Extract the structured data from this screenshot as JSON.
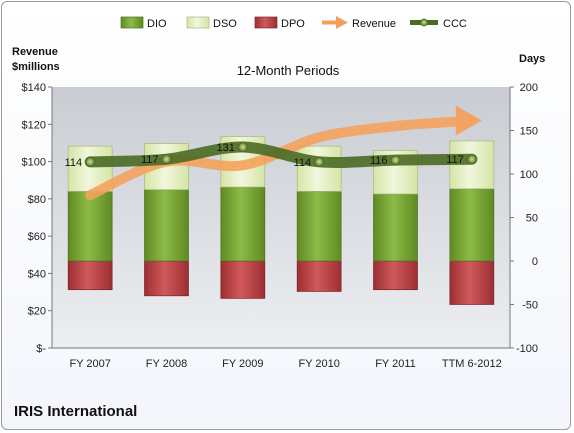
{
  "company": "IRIS International",
  "chart_data": {
    "type": "bar",
    "title": "12-Month Periods",
    "categories": [
      "FY 2007",
      "FY 2008",
      "FY 2009",
      "FY 2010",
      "FY 2011",
      "TTM 6-2012"
    ],
    "left_axis": {
      "label_line1": "Revenue",
      "label_line2": "$millions",
      "range": [
        0,
        140
      ],
      "ticks": [
        "$-",
        "$20",
        "$40",
        "$60",
        "$80",
        "$100",
        "$120",
        "$140"
      ],
      "tick_values": [
        0,
        20,
        40,
        60,
        80,
        100,
        120,
        140
      ]
    },
    "right_axis": {
      "label": "Days",
      "range": [
        -100,
        200
      ],
      "ticks": [
        "-100",
        "-50",
        "0",
        "50",
        "100",
        "150",
        "200"
      ],
      "tick_values": [
        -100,
        -50,
        0,
        50,
        100,
        150,
        200
      ]
    },
    "legend": [
      {
        "name": "DIO",
        "color": "#77a033",
        "kind": "bar"
      },
      {
        "name": "DSO",
        "color": "#e5efc4",
        "kind": "bar"
      },
      {
        "name": "DPO",
        "color": "#c0474a",
        "kind": "bar"
      },
      {
        "name": "Revenue",
        "color": "#f5a05a",
        "kind": "arrow"
      },
      {
        "name": "CCC",
        "color": "#4b6a24",
        "kind": "line"
      }
    ],
    "series": [
      {
        "name": "DIO",
        "axis": "right",
        "values": [
          80,
          82,
          85,
          80,
          77,
          83
        ]
      },
      {
        "name": "DSO",
        "axis": "right",
        "values": [
          52,
          53,
          58,
          52,
          50,
          55
        ]
      },
      {
        "name": "DPO",
        "axis": "right",
        "values": [
          -33,
          -40,
          -43,
          -35,
          -33,
          -50
        ]
      },
      {
        "name": "Revenue",
        "axis": "left",
        "values": [
          82,
          100,
          98,
          113,
          119,
          122
        ]
      },
      {
        "name": "CCC",
        "axis": "right",
        "values": [
          114,
          117,
          131,
          114,
          116,
          117
        ]
      }
    ],
    "ccc_labels": [
      "114",
      "117",
      "131",
      "114",
      "116",
      "117"
    ],
    "legend_position": "top",
    "grid": false
  }
}
